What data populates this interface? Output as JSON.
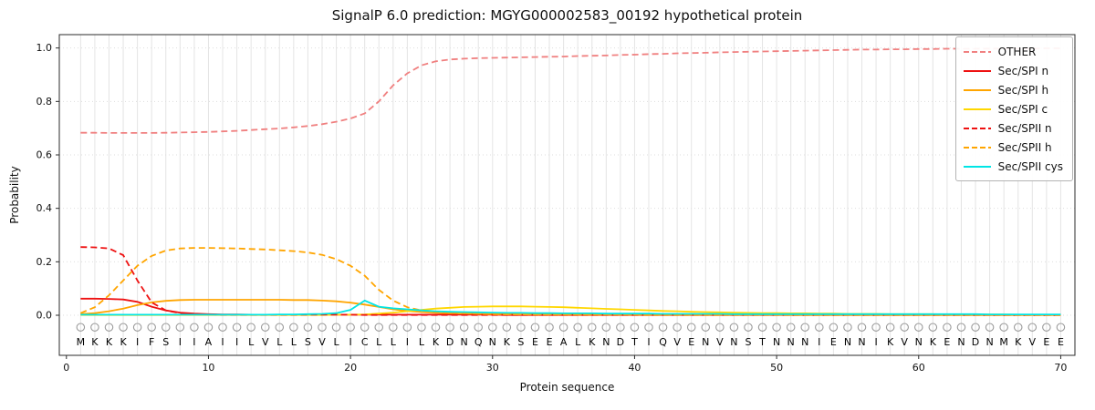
{
  "chart_data": {
    "type": "line",
    "title": "SignalP 6.0 prediction: MGYG000002583_00192 hypothetical protein",
    "xlabel": "Protein sequence",
    "ylabel": "Probability",
    "xlim": [
      -0.5,
      71
    ],
    "ylim": [
      -0.15,
      1.05
    ],
    "xticks": [
      0,
      10,
      20,
      30,
      40,
      50,
      60,
      70
    ],
    "yticks": [
      0.0,
      0.2,
      0.4,
      0.6,
      0.8,
      1.0
    ],
    "grid": "vertical line per residue, dotted horizontal at y ticks",
    "legend_position": "upper right",
    "sequence": "MKKKIFSIIAIILVLLSVLICLLILKDNQNKSEEALKNDTIQVENVNSTNNNIENNIKVNKENDNMKVEE",
    "series": [
      {
        "name": "OTHER",
        "color": "#f08080",
        "dash": "dashed",
        "values": [
          0.683,
          0.683,
          0.682,
          0.682,
          0.682,
          0.682,
          0.683,
          0.684,
          0.685,
          0.686,
          0.688,
          0.69,
          0.693,
          0.696,
          0.699,
          0.703,
          0.708,
          0.715,
          0.724,
          0.736,
          0.755,
          0.8,
          0.86,
          0.905,
          0.935,
          0.95,
          0.957,
          0.96,
          0.962,
          0.963,
          0.964,
          0.965,
          0.966,
          0.967,
          0.968,
          0.97,
          0.971,
          0.972,
          0.974,
          0.975,
          0.977,
          0.978,
          0.98,
          0.981,
          0.982,
          0.984,
          0.985,
          0.986,
          0.987,
          0.988,
          0.989,
          0.99,
          0.991,
          0.992,
          0.993,
          0.994,
          0.994,
          0.995,
          0.995,
          0.996,
          0.996,
          0.997,
          0.997,
          0.997,
          0.998,
          0.998,
          0.998,
          0.998,
          0.999,
          0.999
        ]
      },
      {
        "name": "Sec/SPI n",
        "color": "#ee1111",
        "dash": "solid",
        "values": [
          0.062,
          0.062,
          0.061,
          0.059,
          0.05,
          0.032,
          0.018,
          0.01,
          0.006,
          0.004,
          0.003,
          0.003,
          0.002,
          0.002,
          0.002,
          0.002,
          0.002,
          0.002,
          0.002,
          0.002,
          0.002,
          0.002,
          0.002,
          0.002,
          0.002,
          0.002,
          0.002,
          0.002,
          0.002,
          0.002,
          0.001,
          0.001,
          0.001,
          0.001,
          0.001,
          0.001,
          0.001,
          0.001,
          0.001,
          0.001,
          0.001,
          0.001,
          0.001,
          0.001,
          0.001,
          0.001,
          0.001,
          0.001,
          0.001,
          0.001,
          0.001,
          0.001,
          0.001,
          0.001,
          0.001,
          0.001,
          0.001,
          0.001,
          0.001,
          0.001,
          0.001,
          0.001,
          0.001,
          0.001,
          0.001,
          0.001,
          0.001,
          0.001,
          0.001,
          0.001
        ]
      },
      {
        "name": "Sec/SPI h",
        "color": "#ffa500",
        "dash": "solid",
        "values": [
          0.004,
          0.008,
          0.015,
          0.025,
          0.038,
          0.048,
          0.054,
          0.057,
          0.058,
          0.058,
          0.058,
          0.058,
          0.058,
          0.058,
          0.058,
          0.057,
          0.057,
          0.055,
          0.052,
          0.047,
          0.04,
          0.031,
          0.022,
          0.016,
          0.012,
          0.009,
          0.007,
          0.006,
          0.005,
          0.004,
          0.004,
          0.003,
          0.003,
          0.003,
          0.003,
          0.002,
          0.002,
          0.002,
          0.002,
          0.002,
          0.002,
          0.002,
          0.002,
          0.002,
          0.002,
          0.002,
          0.002,
          0.002,
          0.002,
          0.002,
          0.001,
          0.001,
          0.001,
          0.001,
          0.001,
          0.001,
          0.001,
          0.001,
          0.001,
          0.001,
          0.001,
          0.001,
          0.001,
          0.001,
          0.001,
          0.001,
          0.001,
          0.001,
          0.001,
          0.001
        ]
      },
      {
        "name": "Sec/SPI c",
        "color": "#ffd700",
        "dash": "solid",
        "values": [
          0.001,
          0.001,
          0.001,
          0.001,
          0.001,
          0.001,
          0.001,
          0.001,
          0.001,
          0.001,
          0.001,
          0.001,
          0.001,
          0.001,
          0.001,
          0.001,
          0.001,
          0.001,
          0.002,
          0.002,
          0.003,
          0.006,
          0.01,
          0.015,
          0.02,
          0.025,
          0.028,
          0.031,
          0.032,
          0.033,
          0.033,
          0.033,
          0.032,
          0.031,
          0.03,
          0.028,
          0.026,
          0.024,
          0.022,
          0.02,
          0.018,
          0.016,
          0.015,
          0.013,
          0.012,
          0.011,
          0.01,
          0.009,
          0.008,
          0.008,
          0.007,
          0.007,
          0.006,
          0.006,
          0.005,
          0.005,
          0.005,
          0.004,
          0.004,
          0.004,
          0.004,
          0.003,
          0.003,
          0.003,
          0.003,
          0.003,
          0.002,
          0.002,
          0.002,
          0.002
        ]
      },
      {
        "name": "Sec/SPII n",
        "color": "#ee1111",
        "dash": "dashed",
        "values": [
          0.255,
          0.254,
          0.25,
          0.225,
          0.13,
          0.048,
          0.018,
          0.008,
          0.004,
          0.003,
          0.002,
          0.002,
          0.002,
          0.002,
          0.002,
          0.002,
          0.002,
          0.002,
          0.002,
          0.002,
          0.001,
          0.001,
          0.001,
          0.001,
          0.001,
          0.001,
          0.001,
          0.001,
          0.001,
          0.001,
          0.001,
          0.001,
          0.001,
          0.001,
          0.001,
          0.001,
          0.001,
          0.001,
          0.001,
          0.001,
          0.001,
          0.001,
          0.001,
          0.001,
          0.001,
          0.001,
          0.001,
          0.001,
          0.001,
          0.001,
          0.001,
          0.001,
          0.001,
          0.001,
          0.001,
          0.001,
          0.001,
          0.001,
          0.001,
          0.001,
          0.001,
          0.001,
          0.001,
          0.001,
          0.001,
          0.001,
          0.001,
          0.001,
          0.001,
          0.001
        ]
      },
      {
        "name": "Sec/SPII h",
        "color": "#ffa500",
        "dash": "dashed",
        "values": [
          0.008,
          0.03,
          0.075,
          0.13,
          0.185,
          0.222,
          0.242,
          0.25,
          0.252,
          0.252,
          0.251,
          0.25,
          0.248,
          0.246,
          0.243,
          0.24,
          0.235,
          0.226,
          0.21,
          0.185,
          0.148,
          0.095,
          0.055,
          0.03,
          0.018,
          0.012,
          0.009,
          0.007,
          0.005,
          0.004,
          0.003,
          0.003,
          0.002,
          0.002,
          0.002,
          0.002,
          0.002,
          0.002,
          0.002,
          0.002,
          0.001,
          0.001,
          0.001,
          0.001,
          0.001,
          0.001,
          0.001,
          0.001,
          0.001,
          0.001,
          0.001,
          0.001,
          0.001,
          0.001,
          0.001,
          0.001,
          0.001,
          0.001,
          0.001,
          0.001,
          0.001,
          0.001,
          0.001,
          0.001,
          0.001,
          0.001,
          0.001,
          0.001,
          0.001,
          0.001
        ]
      },
      {
        "name": "Sec/SPII cys",
        "color": "#00e5e5",
        "dash": "solid",
        "values": [
          0.002,
          0.002,
          0.002,
          0.002,
          0.002,
          0.002,
          0.002,
          0.002,
          0.002,
          0.002,
          0.002,
          0.002,
          0.002,
          0.002,
          0.003,
          0.003,
          0.004,
          0.005,
          0.008,
          0.02,
          0.055,
          0.032,
          0.026,
          0.022,
          0.018,
          0.015,
          0.013,
          0.012,
          0.011,
          0.01,
          0.009,
          0.009,
          0.008,
          0.008,
          0.007,
          0.007,
          0.007,
          0.006,
          0.006,
          0.006,
          0.006,
          0.005,
          0.005,
          0.005,
          0.005,
          0.005,
          0.004,
          0.004,
          0.004,
          0.004,
          0.004,
          0.004,
          0.004,
          0.004,
          0.004,
          0.004,
          0.004,
          0.004,
          0.004,
          0.004,
          0.004,
          0.004,
          0.004,
          0.004,
          0.003,
          0.003,
          0.003,
          0.003,
          0.003,
          0.003
        ]
      }
    ]
  }
}
